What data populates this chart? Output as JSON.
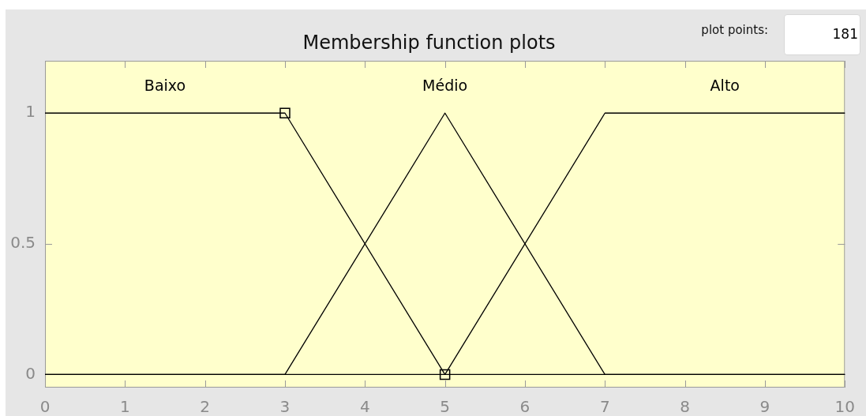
{
  "chart_data": {
    "type": "line",
    "title": "Membership function plots",
    "annotations": [
      "plot points:",
      "181"
    ],
    "xlim": [
      0,
      10
    ],
    "xticks": [
      0,
      1,
      2,
      3,
      4,
      5,
      6,
      7,
      8,
      9,
      10
    ],
    "ylim": [
      -0.05,
      1.2
    ],
    "yticks": [
      0,
      0.5,
      1
    ],
    "grid": false,
    "legend": false,
    "marker": "none",
    "line_style": "solid",
    "series": [
      {
        "name": "Baixo",
        "color": "#000000",
        "x": [
          0,
          3,
          5,
          10
        ],
        "values": [
          1,
          1,
          0,
          0
        ]
      },
      {
        "name": "Médio",
        "color": "#000000",
        "x": [
          0,
          3,
          5,
          7,
          10
        ],
        "values": [
          0,
          0,
          1,
          0,
          0
        ]
      },
      {
        "name": "Alto",
        "color": "#000000",
        "x": [
          0,
          5,
          7,
          10
        ],
        "values": [
          0,
          0,
          1,
          1
        ]
      },
      {
        "type": "scatter",
        "marker": "square",
        "color": "#000000",
        "x": [
          3,
          5
        ],
        "values": [
          1,
          0
        ]
      }
    ]
  }
}
